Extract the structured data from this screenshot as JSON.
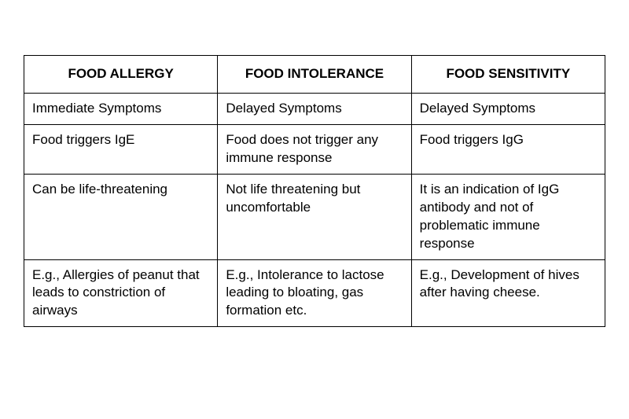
{
  "table": {
    "columns": [
      "FOOD ALLERGY",
      "FOOD INTOLERANCE",
      "FOOD SENSITIVITY"
    ],
    "rows": [
      [
        "Immediate Symptoms",
        "Delayed Symptoms",
        "Delayed Symptoms"
      ],
      [
        "Food triggers IgE",
        "Food does not trigger any immune response",
        "Food triggers IgG"
      ],
      [
        "Can be life-threatening",
        "Not life threatening but uncomfortable",
        "It is an indication of IgG antibody and not of problematic immune response"
      ],
      [
        "E.g., Allergies of peanut that leads to constriction of airways",
        "E.g., Intolerance to lactose leading to bloating, gas formation etc.",
        "E.g., Development of hives after having cheese."
      ]
    ],
    "border_color": "#000000",
    "background_color": "#ffffff",
    "text_color": "#000000",
    "header_fontsize": 17,
    "cell_fontsize": 17,
    "header_fontweight": "bold",
    "column_count": 3,
    "row_count": 4
  }
}
